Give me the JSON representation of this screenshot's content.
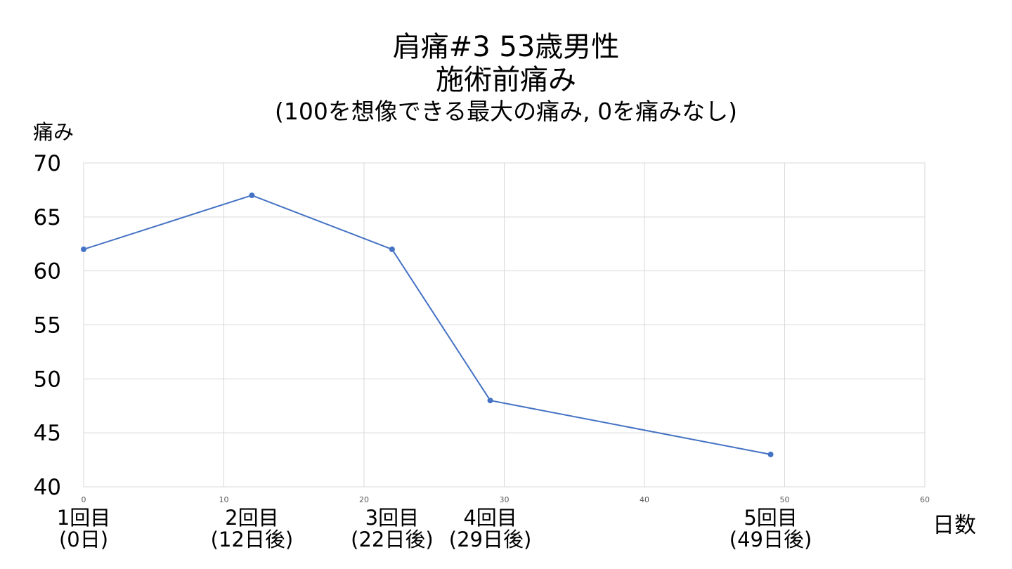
{
  "chart_data": {
    "type": "scatter",
    "title_lines": [
      "肩痛#3 53歳男性",
      "施術前痛み"
    ],
    "subtitle": "(100を想像できる最大の痛み, 0を痛みなし)",
    "ylabel": "痛み",
    "xlabel": "日数",
    "xlim": [
      0,
      60
    ],
    "ylim": [
      40,
      70
    ],
    "x_ticks": [
      0,
      10,
      20,
      30,
      40,
      50,
      60
    ],
    "y_ticks": [
      40,
      45,
      50,
      55,
      60,
      65,
      70
    ],
    "grid": true,
    "connect_points": true,
    "series": [
      {
        "x": [
          0,
          12,
          22,
          29,
          49
        ],
        "y": [
          62,
          67,
          62,
          48,
          43
        ],
        "color": "#4472C4"
      }
    ],
    "annotations": [
      {
        "x": 0,
        "lines": [
          "1回目",
          "(0日)"
        ]
      },
      {
        "x": 12,
        "lines": [
          "2回目",
          "(12日後)"
        ]
      },
      {
        "x": 22,
        "lines": [
          "3回目",
          "(22日後)"
        ]
      },
      {
        "x": 29,
        "lines": [
          "4回目",
          "(29日後)"
        ]
      },
      {
        "x": 49,
        "lines": [
          "5回目",
          "(49日後)"
        ]
      }
    ],
    "colors": {
      "line": "#4472C4",
      "grid": "#D9D9D9",
      "text": "#000000",
      "tick_text": "#595959"
    }
  }
}
